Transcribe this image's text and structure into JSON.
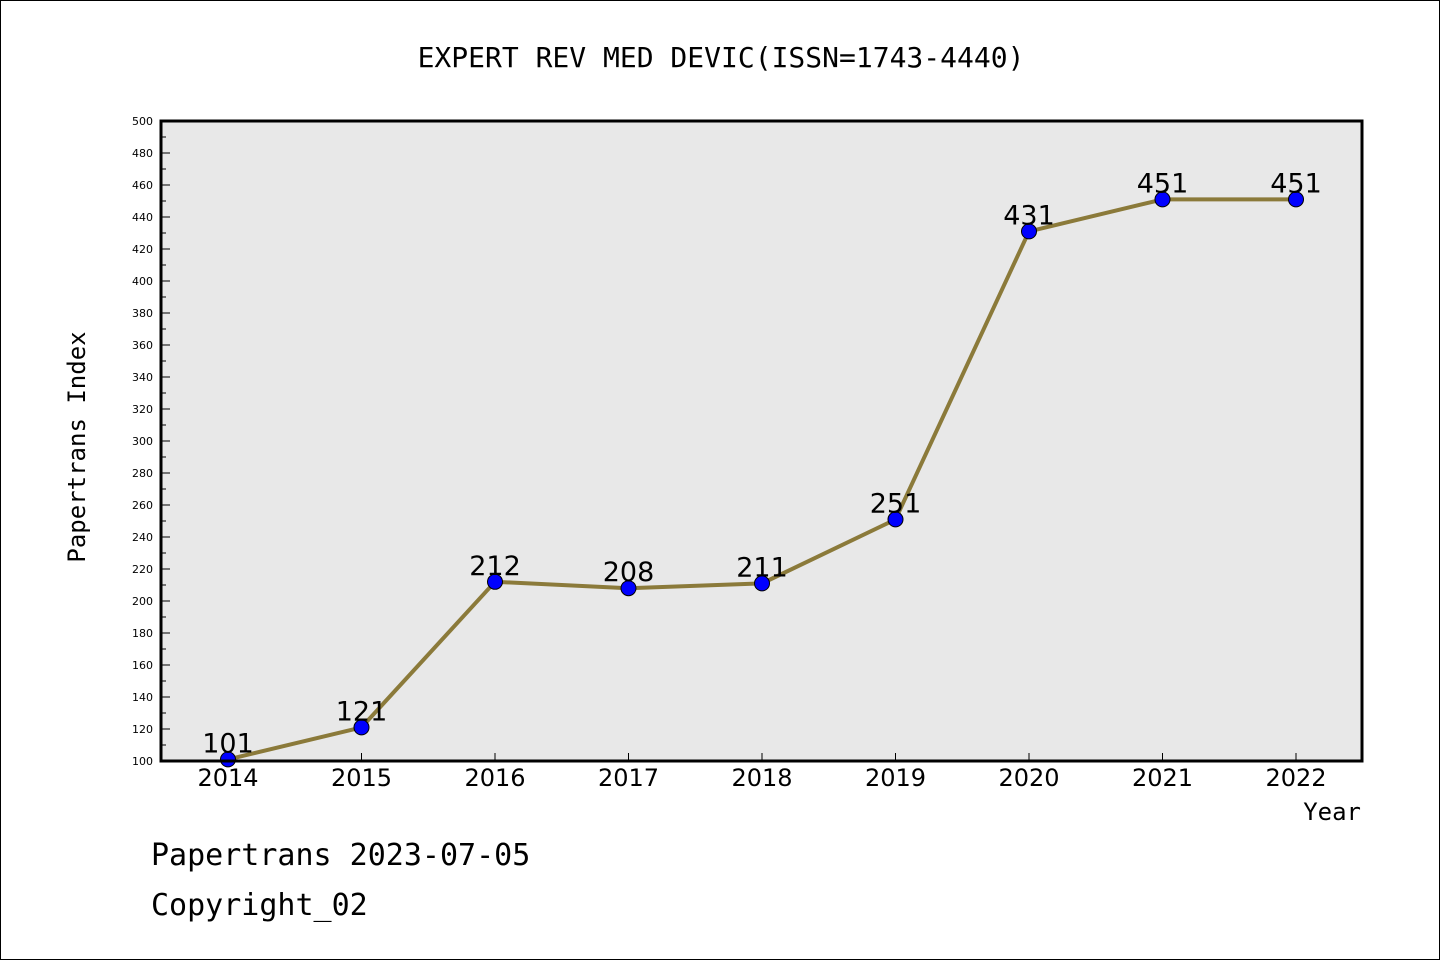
{
  "chart_data": {
    "type": "line",
    "title": "EXPERT REV MED DEVIC(ISSN=1743-4440)",
    "xlabel": "Year",
    "ylabel": "Papertrans Index",
    "categories": [
      "2014",
      "2015",
      "2016",
      "2017",
      "2018",
      "2019",
      "2020",
      "2021",
      "2022"
    ],
    "series": [
      {
        "values": [
          101,
          121,
          212,
          208,
          211,
          251,
          431,
          451,
          451
        ],
        "labels": [
          "101",
          "121",
          "212",
          "208",
          "211",
          "251",
          "431",
          "451",
          "451"
        ]
      }
    ],
    "ylim": [
      100,
      500
    ],
    "yticks": [
      "100",
      "120",
      "140",
      "160",
      "180",
      "200",
      "220",
      "240",
      "260",
      "280",
      "300",
      "320",
      "340",
      "360",
      "380",
      "400",
      "420",
      "440",
      "460",
      "480",
      "500"
    ],
    "grid": false,
    "line_color": "#8b7a3a",
    "marker_color": "#0000ff",
    "plot_background": "#e8e8e8"
  },
  "footer": {
    "date_line": "Papertrans 2023-07-05",
    "copyright_line": "Copyright_02"
  }
}
